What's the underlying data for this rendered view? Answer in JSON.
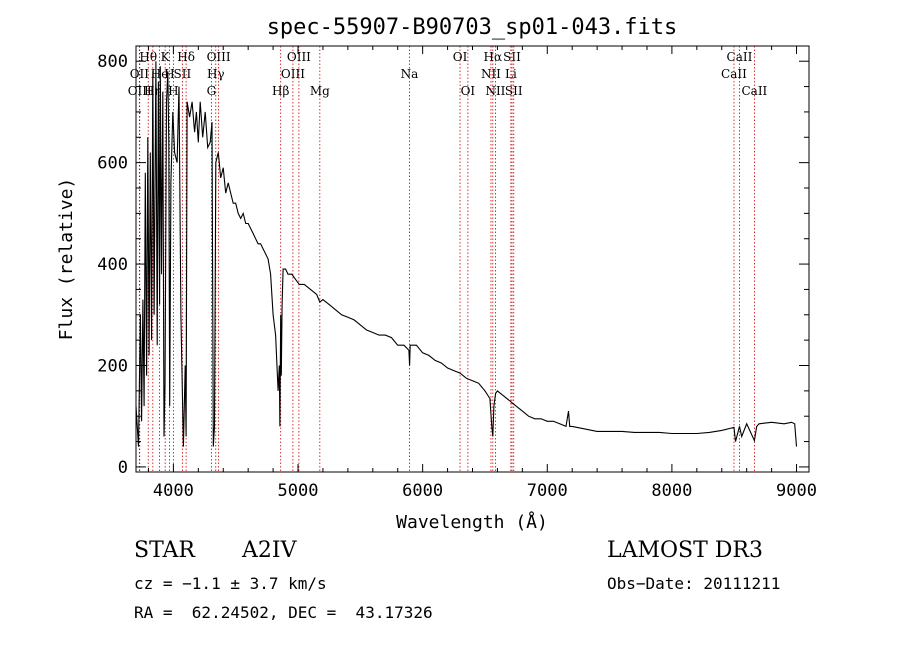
{
  "chart_data": {
    "type": "line",
    "title": "spec-55907-B90703_sp01-043.fits",
    "xlabel": "Wavelength (Å)",
    "ylabel": "Flux (relative)",
    "xlim": [
      3700,
      9100
    ],
    "ylim": [
      -10,
      830
    ],
    "x_ticks": [
      4000,
      5000,
      6000,
      7000,
      8000,
      9000
    ],
    "y_ticks": [
      0,
      200,
      400,
      600,
      800
    ],
    "grid": false,
    "series": [
      {
        "name": "flux",
        "x": [
          3700,
          3720,
          3735,
          3745,
          3755,
          3765,
          3775,
          3785,
          3795,
          3805,
          3815,
          3825,
          3835,
          3845,
          3860,
          3870,
          3880,
          3889,
          3895,
          3905,
          3915,
          3925,
          3933,
          3945,
          3955,
          3963,
          3970,
          3980,
          3995,
          4010,
          4030,
          4045,
          4060,
          4080,
          4095,
          4102,
          4110,
          4130,
          4150,
          4170,
          4185,
          4200,
          4215,
          4235,
          4255,
          4275,
          4295,
          4310,
          4320,
          4330,
          4340,
          4350,
          4360,
          4380,
          4400,
          4420,
          4440,
          4460,
          4480,
          4500,
          4520,
          4540,
          4560,
          4580,
          4600,
          4620,
          4640,
          4660,
          4680,
          4700,
          4720,
          4740,
          4760,
          4780,
          4800,
          4820,
          4840,
          4850,
          4855,
          4861,
          4866,
          4872,
          4880,
          4900,
          4920,
          4950,
          4980,
          5010,
          5050,
          5100,
          5150,
          5175,
          5200,
          5250,
          5300,
          5350,
          5400,
          5450,
          5500,
          5550,
          5600,
          5650,
          5700,
          5750,
          5800,
          5850,
          5890,
          5895,
          5900,
          5950,
          6000,
          6050,
          6100,
          6150,
          6200,
          6250,
          6300,
          6350,
          6400,
          6450,
          6500,
          6540,
          6555,
          6563,
          6572,
          6585,
          6600,
          6650,
          6700,
          6750,
          6800,
          6850,
          6900,
          6950,
          7000,
          7050,
          7100,
          7150,
          7170,
          7180,
          7200,
          7300,
          7400,
          7500,
          7600,
          7700,
          7800,
          7900,
          8000,
          8100,
          8200,
          8300,
          8400,
          8498,
          8510,
          8542,
          8560,
          8600,
          8662,
          8680,
          8700,
          8800,
          8900,
          8960,
          8985,
          9000
        ],
        "values": [
          120,
          40,
          300,
          90,
          330,
          120,
          580,
          180,
          650,
          220,
          620,
          250,
          780,
          300,
          800,
          240,
          760,
          320,
          790,
          380,
          740,
          60,
          160,
          720,
          780,
          640,
          120,
          560,
          700,
          620,
          600,
          750,
          300,
          40,
          200,
          60,
          720,
          690,
          720,
          660,
          700,
          640,
          720,
          650,
          700,
          630,
          640,
          680,
          40,
          80,
          600,
          610,
          620,
          570,
          590,
          540,
          560,
          540,
          520,
          520,
          500,
          490,
          500,
          480,
          480,
          470,
          460,
          450,
          440,
          440,
          430,
          420,
          410,
          380,
          300,
          260,
          150,
          200,
          80,
          300,
          180,
          320,
          390,
          390,
          380,
          380,
          370,
          360,
          360,
          350,
          340,
          325,
          330,
          320,
          310,
          300,
          295,
          290,
          280,
          270,
          265,
          260,
          260,
          255,
          240,
          240,
          230,
          200,
          240,
          240,
          225,
          220,
          210,
          205,
          195,
          190,
          185,
          175,
          170,
          165,
          150,
          135,
          80,
          60,
          120,
          145,
          150,
          140,
          130,
          120,
          110,
          100,
          95,
          95,
          90,
          90,
          85,
          80,
          110,
          80,
          80,
          75,
          70,
          70,
          70,
          68,
          68,
          68,
          66,
          66,
          66,
          68,
          72,
          78,
          50,
          80,
          60,
          85,
          52,
          80,
          85,
          88,
          85,
          88,
          85,
          40
        ]
      }
    ],
    "line_markers": [
      {
        "label": "OII",
        "x": 3727,
        "row": 1
      },
      {
        "label": "Hθ",
        "x": 3798,
        "row": 0
      },
      {
        "label": "OIII",
        "x": 3730,
        "row": 2
      },
      {
        "label": "Hη",
        "x": 3835,
        "row": 2
      },
      {
        "label": "He",
        "x": 3889,
        "row": 1
      },
      {
        "label": "K",
        "x": 3934,
        "row": 0
      },
      {
        "label": "H",
        "x": 3969,
        "row": 1
      },
      {
        "label": "SII",
        "x": 4072,
        "row": 1
      },
      {
        "label": "Hδ",
        "x": 4102,
        "row": 0
      },
      {
        "label": "H",
        "x": 4000,
        "row": 2
      },
      {
        "label": "OIII",
        "x": 4363,
        "row": 0
      },
      {
        "label": "Hγ",
        "x": 4340,
        "row": 1
      },
      {
        "label": "G",
        "x": 4305,
        "row": 2
      },
      {
        "label": "Hβ",
        "x": 4861,
        "row": 2
      },
      {
        "label": "OIII",
        "x": 5007,
        "row": 0
      },
      {
        "label": "OIII",
        "x": 4959,
        "row": 1
      },
      {
        "label": "Mg",
        "x": 5175,
        "row": 2
      },
      {
        "label": "Na",
        "x": 5894,
        "row": 1
      },
      {
        "label": "OI",
        "x": 6300,
        "row": 0
      },
      {
        "label": "OI",
        "x": 6363,
        "row": 2
      },
      {
        "label": "Hα",
        "x": 6563,
        "row": 0
      },
      {
        "label": "NII",
        "x": 6548,
        "row": 1
      },
      {
        "label": "NII",
        "x": 6584,
        "row": 2
      },
      {
        "label": "SII",
        "x": 6717,
        "row": 0
      },
      {
        "label": "Li",
        "x": 6708,
        "row": 1
      },
      {
        "label": "SII",
        "x": 6731,
        "row": 2
      },
      {
        "label": "CaII",
        "x": 8542,
        "row": 0
      },
      {
        "label": "CaII",
        "x": 8498,
        "row": 1
      },
      {
        "label": "CaII",
        "x": 8662,
        "row": 2
      }
    ],
    "colors": {
      "spectrum": "#000000",
      "marker": "#cc0000",
      "axis": "#000000"
    }
  },
  "info": {
    "class": "STAR",
    "subclass": "A2IV",
    "survey": "LAMOST DR3",
    "cz": "cz = −1.1 ± 3.7 km/s",
    "obs_date": "Obs−Date: 20111211",
    "radec": "RA =  62.24502, DEC =  43.17326"
  }
}
